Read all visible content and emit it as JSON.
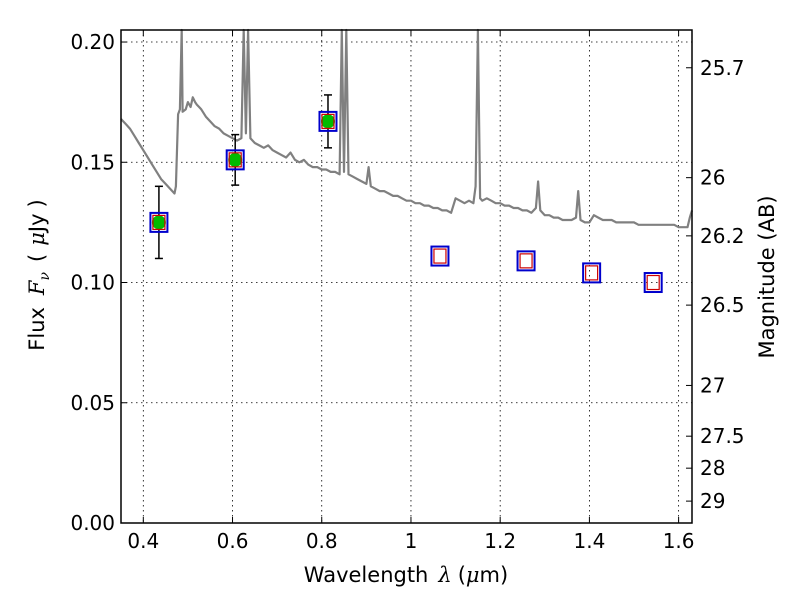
{
  "chart_data": {
    "type": "scatter",
    "xlabel": {
      "prefix": "Wavelength",
      "symbol": "λ",
      "unit_prefix": "(",
      "unit_mu": "μ",
      "unit_suffix": "m)"
    },
    "ylabel": {
      "prefix": "Flux",
      "symbol_base": "F",
      "symbol_sub": "ν",
      "unit_open": "(",
      "unit_mu": "μ",
      "unit_rest": "Jy",
      "unit_close": ")"
    },
    "y2label": "Magnitude (AB)",
    "xlim": [
      0.35,
      1.63
    ],
    "ylim": [
      0.0,
      0.205
    ],
    "x_ticks": [
      {
        "value": 0.4,
        "label": "0.4"
      },
      {
        "value": 0.6,
        "label": "0.6"
      },
      {
        "value": 0.8,
        "label": "0.8"
      },
      {
        "value": 1.0,
        "label": "1"
      },
      {
        "value": 1.2,
        "label": "1.2"
      },
      {
        "value": 1.4,
        "label": "1.4"
      },
      {
        "value": 1.6,
        "label": "1.6"
      }
    ],
    "y_ticks": [
      {
        "value": 0.0,
        "label": "0.00"
      },
      {
        "value": 0.05,
        "label": "0.05"
      },
      {
        "value": 0.1,
        "label": "0.10"
      },
      {
        "value": 0.15,
        "label": "0.15"
      },
      {
        "value": 0.2,
        "label": "0.20"
      }
    ],
    "y2_ticks": [
      {
        "label": "25.7",
        "flux": 0.1893
      },
      {
        "label": "26",
        "flux": 0.1436
      },
      {
        "label": "26.2",
        "flux": 0.1194
      },
      {
        "label": "26.5",
        "flux": 0.0906
      },
      {
        "label": "27",
        "flux": 0.0572
      },
      {
        "label": "27.5",
        "flux": 0.0361
      },
      {
        "label": "28",
        "flux": 0.0228
      },
      {
        "label": "29",
        "flux": 0.0091
      }
    ],
    "grid": true,
    "colors": {
      "spectrum": "#808080",
      "detection_fill": "#00bb00",
      "box_edge": "#0000cc",
      "model_marker": "#cc0000",
      "errorbar": "#000000"
    },
    "series": [
      {
        "kind": "spectrum",
        "points": [
          [
            0.35,
            0.168
          ],
          [
            0.36,
            0.166
          ],
          [
            0.37,
            0.164
          ],
          [
            0.38,
            0.161
          ],
          [
            0.39,
            0.158
          ],
          [
            0.4,
            0.155
          ],
          [
            0.41,
            0.152
          ],
          [
            0.42,
            0.149
          ],
          [
            0.43,
            0.146
          ],
          [
            0.44,
            0.143
          ],
          [
            0.45,
            0.141
          ],
          [
            0.46,
            0.139
          ],
          [
            0.47,
            0.137
          ],
          [
            0.473,
            0.14
          ],
          [
            0.478,
            0.17
          ],
          [
            0.482,
            0.172
          ],
          [
            0.486,
            0.205
          ],
          [
            0.488,
            0.171
          ],
          [
            0.495,
            0.172
          ],
          [
            0.5,
            0.175
          ],
          [
            0.506,
            0.173
          ],
          [
            0.511,
            0.177
          ],
          [
            0.516,
            0.175
          ],
          [
            0.52,
            0.174
          ],
          [
            0.525,
            0.173
          ],
          [
            0.53,
            0.172
          ],
          [
            0.54,
            0.169
          ],
          [
            0.55,
            0.167
          ],
          [
            0.56,
            0.165
          ],
          [
            0.57,
            0.164
          ],
          [
            0.58,
            0.162
          ],
          [
            0.59,
            0.161
          ],
          [
            0.6,
            0.16
          ],
          [
            0.61,
            0.159
          ],
          [
            0.62,
            0.16
          ],
          [
            0.625,
            0.205
          ],
          [
            0.63,
            0.162
          ],
          [
            0.635,
            0.205
          ],
          [
            0.64,
            0.16
          ],
          [
            0.65,
            0.158
          ],
          [
            0.66,
            0.157
          ],
          [
            0.67,
            0.156
          ],
          [
            0.68,
            0.157
          ],
          [
            0.69,
            0.155
          ],
          [
            0.7,
            0.154
          ],
          [
            0.71,
            0.153
          ],
          [
            0.72,
            0.152
          ],
          [
            0.73,
            0.154
          ],
          [
            0.74,
            0.151
          ],
          [
            0.75,
            0.15
          ],
          [
            0.76,
            0.151
          ],
          [
            0.77,
            0.149
          ],
          [
            0.78,
            0.148
          ],
          [
            0.79,
            0.148
          ],
          [
            0.8,
            0.147
          ],
          [
            0.81,
            0.147
          ],
          [
            0.82,
            0.146
          ],
          [
            0.83,
            0.146
          ],
          [
            0.84,
            0.145
          ],
          [
            0.845,
            0.205
          ],
          [
            0.85,
            0.146
          ],
          [
            0.855,
            0.205
          ],
          [
            0.86,
            0.145
          ],
          [
            0.87,
            0.144
          ],
          [
            0.88,
            0.143
          ],
          [
            0.89,
            0.142
          ],
          [
            0.9,
            0.141
          ],
          [
            0.905,
            0.148
          ],
          [
            0.91,
            0.14
          ],
          [
            0.92,
            0.139
          ],
          [
            0.93,
            0.138
          ],
          [
            0.94,
            0.138
          ],
          [
            0.95,
            0.137
          ],
          [
            0.96,
            0.136
          ],
          [
            0.97,
            0.136
          ],
          [
            0.98,
            0.135
          ],
          [
            0.99,
            0.134
          ],
          [
            1.0,
            0.134
          ],
          [
            1.01,
            0.133
          ],
          [
            1.02,
            0.133
          ],
          [
            1.03,
            0.132
          ],
          [
            1.04,
            0.132
          ],
          [
            1.05,
            0.131
          ],
          [
            1.06,
            0.131
          ],
          [
            1.07,
            0.13
          ],
          [
            1.08,
            0.13
          ],
          [
            1.09,
            0.129
          ],
          [
            1.1,
            0.135
          ],
          [
            1.11,
            0.134
          ],
          [
            1.12,
            0.133
          ],
          [
            1.13,
            0.134
          ],
          [
            1.14,
            0.133
          ],
          [
            1.145,
            0.14
          ],
          [
            1.15,
            0.205
          ],
          [
            1.155,
            0.135
          ],
          [
            1.16,
            0.134
          ],
          [
            1.17,
            0.135
          ],
          [
            1.18,
            0.134
          ],
          [
            1.19,
            0.133
          ],
          [
            1.2,
            0.133
          ],
          [
            1.21,
            0.132
          ],
          [
            1.22,
            0.132
          ],
          [
            1.23,
            0.131
          ],
          [
            1.24,
            0.131
          ],
          [
            1.25,
            0.13
          ],
          [
            1.26,
            0.13
          ],
          [
            1.27,
            0.129
          ],
          [
            1.28,
            0.131
          ],
          [
            1.285,
            0.142
          ],
          [
            1.29,
            0.13
          ],
          [
            1.3,
            0.128
          ],
          [
            1.31,
            0.128
          ],
          [
            1.32,
            0.127
          ],
          [
            1.33,
            0.127
          ],
          [
            1.34,
            0.126
          ],
          [
            1.35,
            0.126
          ],
          [
            1.36,
            0.126
          ],
          [
            1.37,
            0.127
          ],
          [
            1.375,
            0.138
          ],
          [
            1.38,
            0.126
          ],
          [
            1.39,
            0.125
          ],
          [
            1.4,
            0.125
          ],
          [
            1.41,
            0.128
          ],
          [
            1.42,
            0.127
          ],
          [
            1.43,
            0.126
          ],
          [
            1.44,
            0.126
          ],
          [
            1.45,
            0.126
          ],
          [
            1.46,
            0.125
          ],
          [
            1.47,
            0.125
          ],
          [
            1.48,
            0.125
          ],
          [
            1.49,
            0.125
          ],
          [
            1.5,
            0.125
          ],
          [
            1.51,
            0.124
          ],
          [
            1.52,
            0.124
          ],
          [
            1.53,
            0.124
          ],
          [
            1.54,
            0.124
          ],
          [
            1.55,
            0.124
          ],
          [
            1.56,
            0.124
          ],
          [
            1.57,
            0.124
          ],
          [
            1.58,
            0.124
          ],
          [
            1.59,
            0.124
          ],
          [
            1.6,
            0.123
          ],
          [
            1.61,
            0.123
          ],
          [
            1.62,
            0.123
          ],
          [
            1.625,
            0.127
          ],
          [
            1.63,
            0.13
          ]
        ]
      },
      {
        "kind": "detections",
        "points": [
          {
            "x": 0.435,
            "y": 0.125,
            "err": 0.015
          },
          {
            "x": 0.606,
            "y": 0.151,
            "err": 0.0105
          },
          {
            "x": 0.814,
            "y": 0.167,
            "err": 0.011
          }
        ]
      },
      {
        "kind": "model_photometry",
        "points": [
          {
            "x": 0.435,
            "y": 0.125
          },
          {
            "x": 0.606,
            "y": 0.151
          },
          {
            "x": 0.814,
            "y": 0.167
          },
          {
            "x": 1.065,
            "y": 0.111
          },
          {
            "x": 1.258,
            "y": 0.109
          },
          {
            "x": 1.405,
            "y": 0.104
          },
          {
            "x": 1.543,
            "y": 0.1
          }
        ]
      }
    ]
  }
}
